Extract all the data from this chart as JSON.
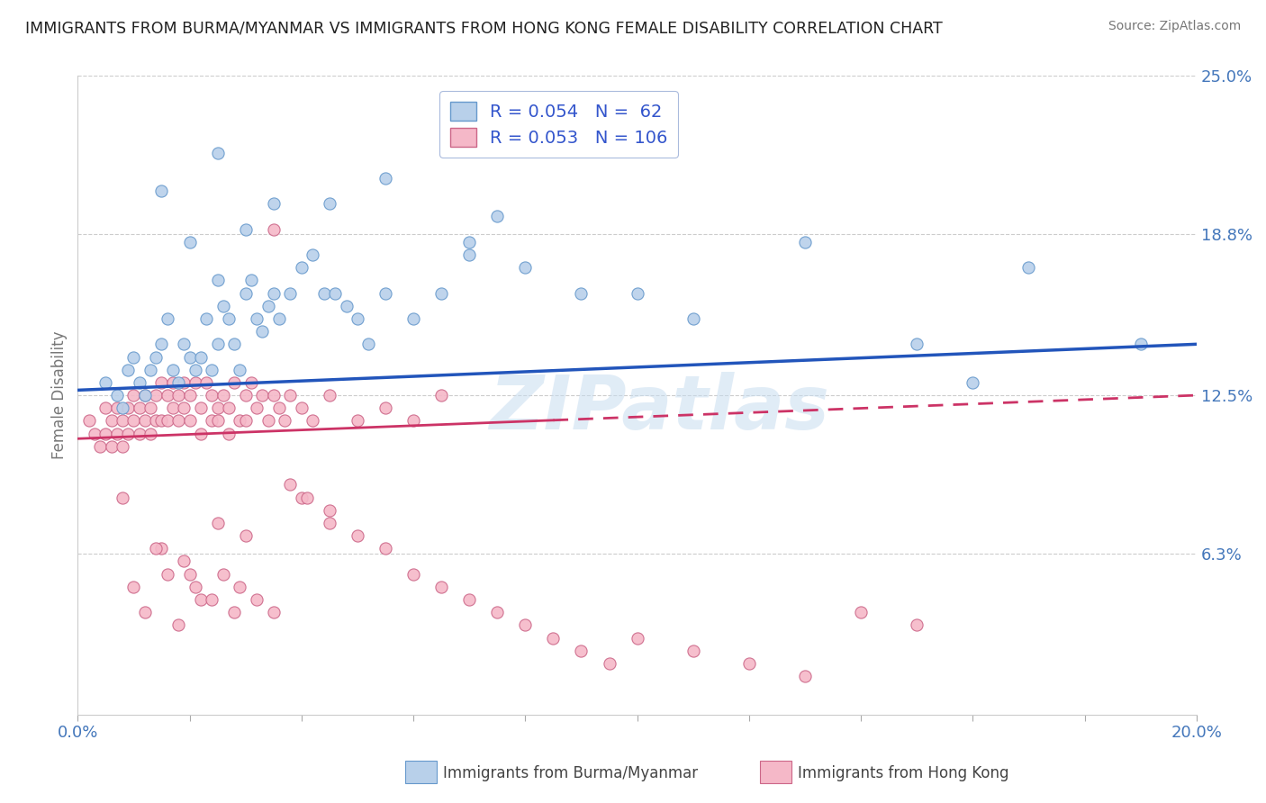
{
  "title": "IMMIGRANTS FROM BURMA/MYANMAR VS IMMIGRANTS FROM HONG KONG FEMALE DISABILITY CORRELATION CHART",
  "source": "Source: ZipAtlas.com",
  "ylabel": "Female Disability",
  "xlim": [
    0.0,
    0.2
  ],
  "ylim": [
    0.0,
    0.25
  ],
  "yticks_right": [
    0.25,
    0.188,
    0.125,
    0.063
  ],
  "ytick_labels_right": [
    "25.0%",
    "18.8%",
    "12.5%",
    "6.3%"
  ],
  "grid_color": "#cccccc",
  "background_color": "#ffffff",
  "tick_color": "#4477bb",
  "series": [
    {
      "name": "Immigrants from Burma/Myanmar",
      "R": 0.054,
      "N": 62,
      "color": "#b8d0ea",
      "edge_color": "#6699cc",
      "trend_color": "#2255bb",
      "trend_style": "solid"
    },
    {
      "name": "Immigrants from Hong Kong",
      "R": 0.053,
      "N": 106,
      "color": "#f5b8c8",
      "edge_color": "#cc6688",
      "trend_color": "#cc3366",
      "trend_style": "solid"
    }
  ],
  "watermark": "ZIPatlas",
  "blue_x": [
    0.005,
    0.007,
    0.008,
    0.009,
    0.01,
    0.011,
    0.012,
    0.013,
    0.014,
    0.015,
    0.016,
    0.017,
    0.018,
    0.019,
    0.02,
    0.021,
    0.022,
    0.023,
    0.024,
    0.025,
    0.026,
    0.027,
    0.028,
    0.029,
    0.03,
    0.031,
    0.032,
    0.033,
    0.034,
    0.035,
    0.036,
    0.038,
    0.04,
    0.042,
    0.044,
    0.046,
    0.048,
    0.05,
    0.052,
    0.055,
    0.06,
    0.065,
    0.07,
    0.075,
    0.08,
    0.09,
    0.1,
    0.11,
    0.13,
    0.15,
    0.17,
    0.19,
    0.055,
    0.035,
    0.045,
    0.025,
    0.015,
    0.02,
    0.03,
    0.025,
    0.16,
    0.07
  ],
  "blue_y": [
    0.13,
    0.125,
    0.12,
    0.135,
    0.14,
    0.13,
    0.125,
    0.135,
    0.14,
    0.145,
    0.155,
    0.135,
    0.13,
    0.145,
    0.14,
    0.135,
    0.14,
    0.155,
    0.135,
    0.145,
    0.16,
    0.155,
    0.145,
    0.135,
    0.165,
    0.17,
    0.155,
    0.15,
    0.16,
    0.165,
    0.155,
    0.165,
    0.175,
    0.18,
    0.165,
    0.165,
    0.16,
    0.155,
    0.145,
    0.165,
    0.155,
    0.165,
    0.185,
    0.195,
    0.175,
    0.165,
    0.165,
    0.155,
    0.185,
    0.145,
    0.175,
    0.145,
    0.21,
    0.2,
    0.2,
    0.22,
    0.205,
    0.185,
    0.19,
    0.17,
    0.13,
    0.18
  ],
  "pink_x": [
    0.002,
    0.003,
    0.004,
    0.005,
    0.005,
    0.006,
    0.006,
    0.007,
    0.007,
    0.008,
    0.008,
    0.009,
    0.009,
    0.01,
    0.01,
    0.011,
    0.011,
    0.012,
    0.012,
    0.013,
    0.013,
    0.014,
    0.014,
    0.015,
    0.015,
    0.016,
    0.016,
    0.017,
    0.017,
    0.018,
    0.018,
    0.019,
    0.019,
    0.02,
    0.02,
    0.021,
    0.022,
    0.022,
    0.023,
    0.024,
    0.024,
    0.025,
    0.025,
    0.026,
    0.027,
    0.027,
    0.028,
    0.029,
    0.03,
    0.03,
    0.031,
    0.032,
    0.033,
    0.034,
    0.035,
    0.036,
    0.037,
    0.038,
    0.04,
    0.042,
    0.045,
    0.05,
    0.055,
    0.06,
    0.065,
    0.035,
    0.04,
    0.045,
    0.025,
    0.03,
    0.015,
    0.02,
    0.01,
    0.012,
    0.018,
    0.022,
    0.028,
    0.008,
    0.014,
    0.016,
    0.019,
    0.021,
    0.024,
    0.026,
    0.029,
    0.032,
    0.035,
    0.038,
    0.041,
    0.045,
    0.05,
    0.055,
    0.06,
    0.065,
    0.07,
    0.075,
    0.08,
    0.085,
    0.09,
    0.095,
    0.1,
    0.11,
    0.12,
    0.13,
    0.14,
    0.15
  ],
  "pink_y": [
    0.115,
    0.11,
    0.105,
    0.12,
    0.11,
    0.115,
    0.105,
    0.12,
    0.11,
    0.115,
    0.105,
    0.12,
    0.11,
    0.125,
    0.115,
    0.12,
    0.11,
    0.125,
    0.115,
    0.12,
    0.11,
    0.125,
    0.115,
    0.13,
    0.115,
    0.125,
    0.115,
    0.13,
    0.12,
    0.125,
    0.115,
    0.13,
    0.12,
    0.125,
    0.115,
    0.13,
    0.12,
    0.11,
    0.13,
    0.115,
    0.125,
    0.12,
    0.115,
    0.125,
    0.12,
    0.11,
    0.13,
    0.115,
    0.125,
    0.115,
    0.13,
    0.12,
    0.125,
    0.115,
    0.125,
    0.12,
    0.115,
    0.125,
    0.12,
    0.115,
    0.125,
    0.115,
    0.12,
    0.115,
    0.125,
    0.19,
    0.085,
    0.08,
    0.075,
    0.07,
    0.065,
    0.055,
    0.05,
    0.04,
    0.035,
    0.045,
    0.04,
    0.085,
    0.065,
    0.055,
    0.06,
    0.05,
    0.045,
    0.055,
    0.05,
    0.045,
    0.04,
    0.09,
    0.085,
    0.075,
    0.07,
    0.065,
    0.055,
    0.05,
    0.045,
    0.04,
    0.035,
    0.03,
    0.025,
    0.02,
    0.03,
    0.025,
    0.02,
    0.015,
    0.04,
    0.035
  ]
}
